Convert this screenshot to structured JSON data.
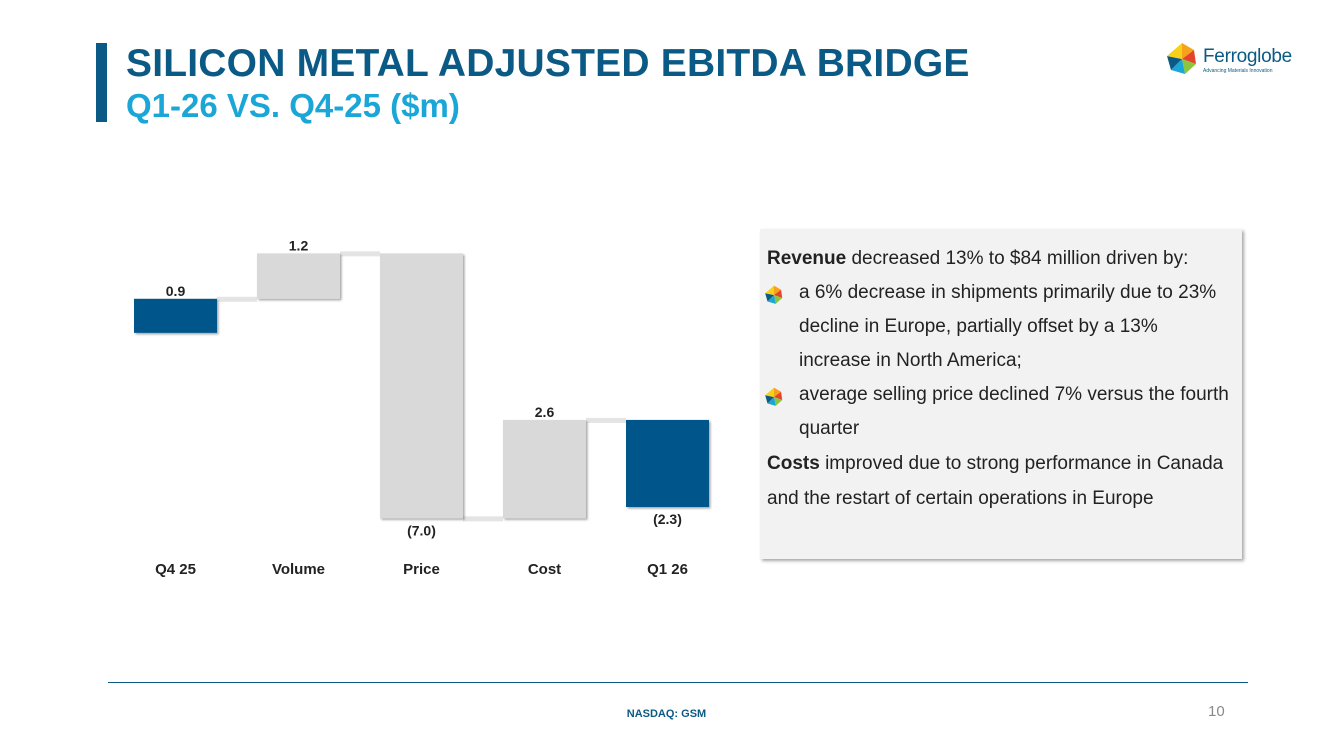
{
  "header": {
    "title": "SILICON METAL ADJUSTED EBITDA BRIDGE",
    "subtitle": "Q1-26 VS. Q4-25 ($m)"
  },
  "logo": {
    "name": "Ferroglobe",
    "tagline": "Advancing Materials Innovation"
  },
  "chart_data": {
    "type": "waterfall",
    "categories": [
      "Q4 25",
      "Volume",
      "Price",
      "Cost",
      "Q1 26"
    ],
    "values": [
      0.9,
      1.2,
      -7.0,
      2.6,
      -2.3
    ],
    "labels": [
      "0.9",
      "1.2",
      "(7.0)",
      "2.6",
      "(2.3)"
    ],
    "kinds": [
      "total",
      "delta",
      "delta",
      "delta",
      "total"
    ],
    "colors": {
      "total": "#00578a",
      "delta": "#d9d9d9",
      "connector": "#e4e4e4"
    },
    "ylim": [
      -4.6,
      2.4
    ],
    "grid": false,
    "legend": "none"
  },
  "commentary": {
    "revenue_bold": "Revenue",
    "revenue_text": " decreased 13% to $84 million driven by:",
    "bullets": [
      "a 6% decrease in shipments primarily due to 23% decline in Europe, partially offset by a 13% increase in North America;",
      "average selling price declined 7% versus the fourth quarter"
    ],
    "costs_bold": "Costs",
    "costs_text": " improved due to strong performance in Canada and the restart of certain operations in Europe"
  },
  "footer": {
    "ticker": "NASDAQ: GSM",
    "page_number": "10"
  }
}
